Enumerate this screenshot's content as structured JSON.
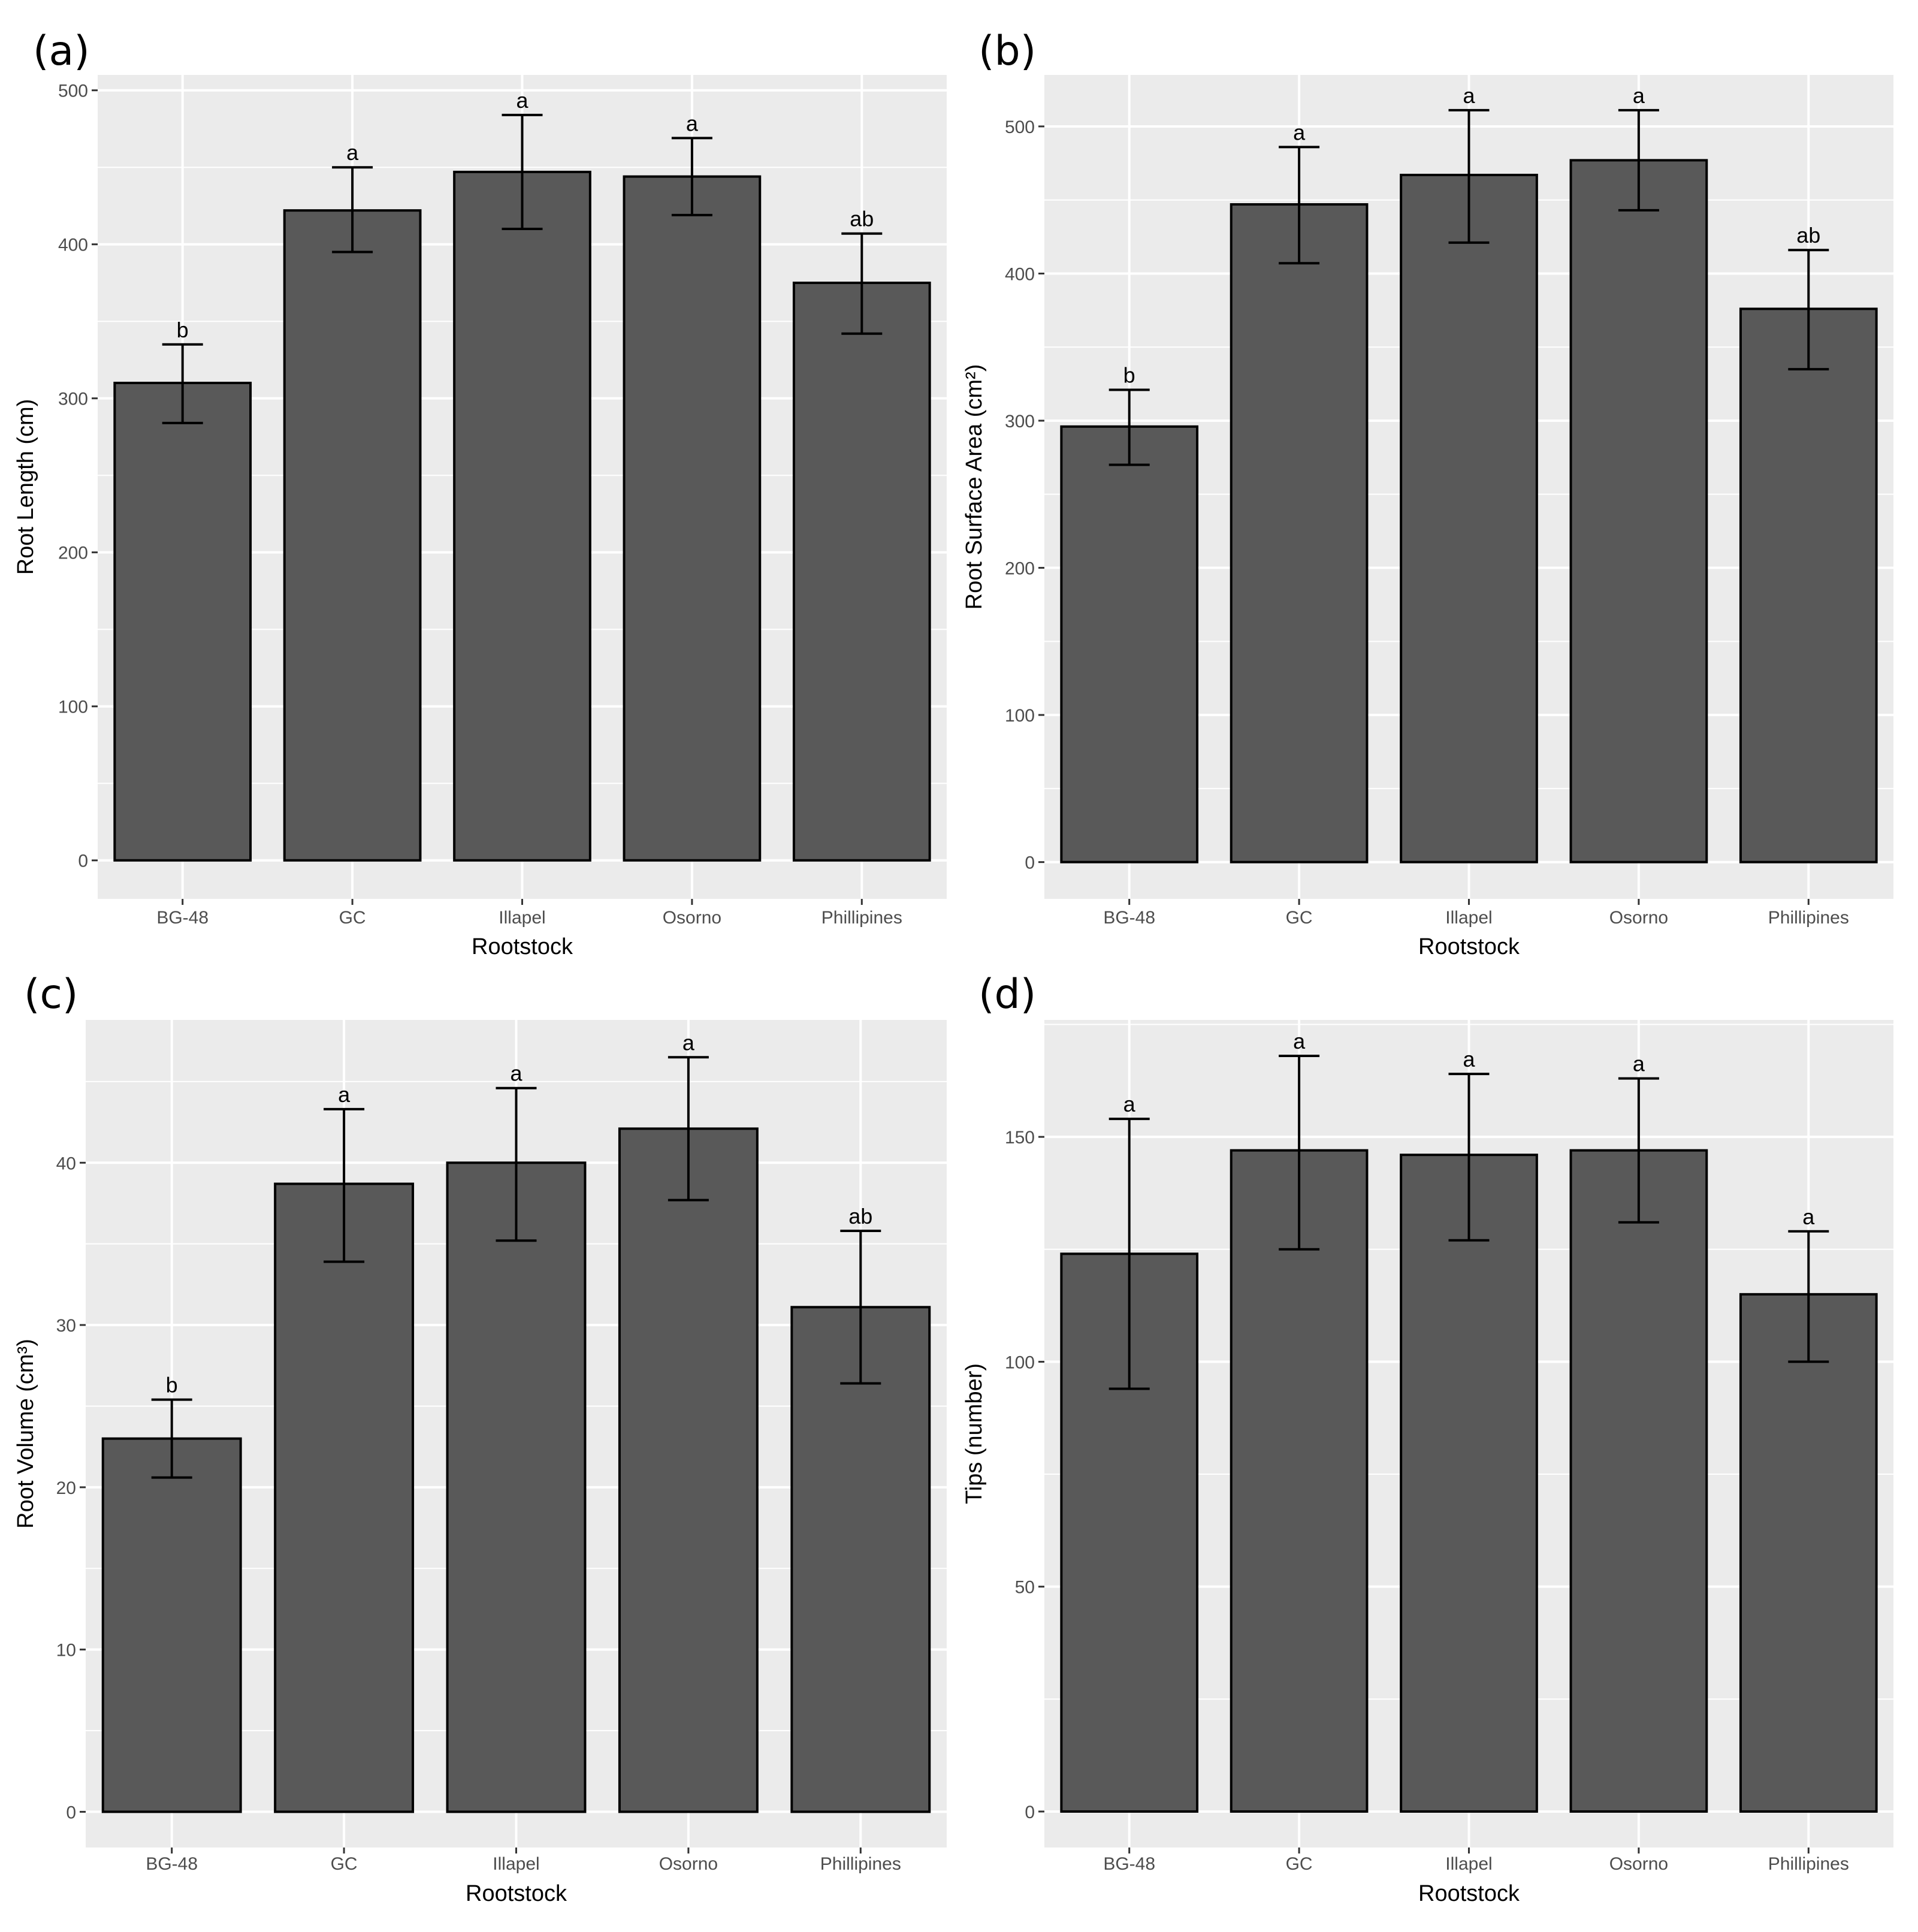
{
  "chart_data": [
    {
      "panel_label": "(a)",
      "type": "bar",
      "categories": [
        "BG-48",
        "GC",
        "Illapel",
        "Osorno",
        "Phillipines"
      ],
      "values": [
        310,
        422,
        447,
        444,
        375
      ],
      "error_low": [
        284,
        395,
        410,
        419,
        342
      ],
      "error_high": [
        335,
        450,
        484,
        469,
        407
      ],
      "significance": [
        "b",
        "a",
        "a",
        "a",
        "ab"
      ],
      "xlabel": "Rootstock",
      "ylabel": "Root Length (cm)",
      "ylim": [
        -25,
        510
      ],
      "yticks": [
        0,
        100,
        200,
        300,
        400,
        500
      ],
      "ytick_labels": [
        "0",
        "100",
        "200",
        "300",
        "400",
        "500"
      ],
      "grid": true
    },
    {
      "panel_label": "(b)",
      "type": "bar",
      "categories": [
        "BG-48",
        "GC",
        "Illapel",
        "Osorno",
        "Phillipines"
      ],
      "values": [
        296,
        447,
        467,
        477,
        376
      ],
      "error_low": [
        270,
        407,
        421,
        443,
        335
      ],
      "error_high": [
        321,
        486,
        511,
        511,
        416
      ],
      "significance": [
        "b",
        "a",
        "a",
        "a",
        "ab"
      ],
      "xlabel": "Rootstock",
      "ylabel": "Root Surface Area (cm²)",
      "ylim": [
        -25,
        535
      ],
      "yticks": [
        0,
        100,
        200,
        300,
        400,
        500
      ],
      "ytick_labels": [
        "0",
        "100",
        "200",
        "300",
        "400",
        "500"
      ],
      "grid": true
    },
    {
      "panel_label": "(c)",
      "type": "bar",
      "categories": [
        "BG-48",
        "GC",
        "Illapel",
        "Osorno",
        "Phillipines"
      ],
      "values": [
        23.0,
        38.7,
        40.0,
        42.1,
        31.1
      ],
      "error_low": [
        20.6,
        33.9,
        35.2,
        37.7,
        26.4
      ],
      "error_high": [
        25.4,
        43.3,
        44.6,
        46.5,
        35.8
      ],
      "significance": [
        "b",
        "a",
        "a",
        "a",
        "ab"
      ],
      "xlabel": "Rootstock",
      "ylabel": "Root Volume (cm³)",
      "ylim": [
        -2.2,
        48.8
      ],
      "yticks": [
        0,
        10,
        20,
        30,
        40
      ],
      "ytick_labels": [
        "0",
        "10",
        "20",
        "30",
        "40"
      ],
      "grid": true
    },
    {
      "panel_label": "(d)",
      "type": "bar",
      "categories": [
        "BG-48",
        "GC",
        "Illapel",
        "Osorno",
        "Phillipines"
      ],
      "values": [
        124,
        147,
        146,
        147,
        115
      ],
      "error_low": [
        94,
        125,
        127,
        131,
        100
      ],
      "error_high": [
        154,
        168,
        164,
        163,
        129
      ],
      "significance": [
        "a",
        "a",
        "a",
        "a",
        "a"
      ],
      "xlabel": "Rootstock",
      "ylabel": "Tips (number)",
      "ylim": [
        -8,
        176
      ],
      "yticks": [
        0,
        50,
        100,
        150
      ],
      "ytick_labels": [
        "0",
        "50",
        "100",
        "150"
      ],
      "grid": true
    }
  ]
}
